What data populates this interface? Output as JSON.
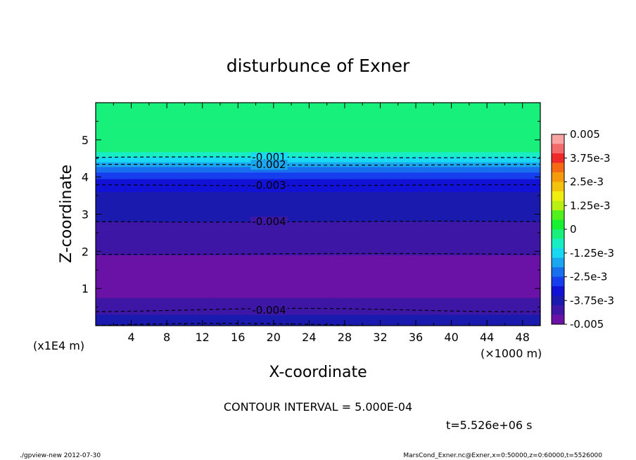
{
  "chart_data": {
    "type": "heatmap",
    "title": "disturbunce of Exner",
    "xlabel": "X-coordinate",
    "ylabel": "Z-coordinate",
    "x_unit": "(×1000 m)",
    "y_unit": "(x1E4 m)",
    "xlim": [
      0,
      50
    ],
    "ylim": [
      0,
      6
    ],
    "x_ticks": [
      "4",
      "8",
      "12",
      "16",
      "20",
      "24",
      "28",
      "32",
      "36",
      "40",
      "44",
      "48"
    ],
    "y_ticks": [
      "1",
      "2",
      "3",
      "4",
      "5"
    ],
    "colorbar": {
      "min": -0.005,
      "max": 0.005,
      "labels": [
        "0.005",
        "3.75e-3",
        "2.5e-3",
        "1.25e-3",
        "0",
        "-1.25e-3",
        "-2.5e-3",
        "-3.75e-3",
        "-0.005"
      ],
      "colors": [
        "#f9a3a3",
        "#f26a6a",
        "#ef2a2a",
        "#f56a14",
        "#f69a0d",
        "#f3c20f",
        "#f0ee11",
        "#b8f014",
        "#52f01d",
        "#18f032",
        "#19f07c",
        "#18eec4",
        "#18d8f2",
        "#1aa7f0",
        "#1870ef",
        "#173eee",
        "#1212d6",
        "#1a1aae",
        "#3e17a6",
        "#6b12a6"
      ]
    },
    "field_profile": {
      "z": [
        0,
        0.1,
        0.3,
        0.5,
        0.75,
        1.0,
        1.2,
        1.45,
        1.7,
        1.9,
        2.1,
        2.4,
        2.8,
        3.0,
        3.3,
        3.6,
        3.85,
        4.0,
        4.15,
        4.3,
        4.45,
        4.6,
        4.7,
        4.85,
        6.0
      ],
      "value": [
        -0.0035,
        -0.0038,
        -0.004,
        -0.0042,
        -0.0045,
        -0.0049,
        -0.005,
        -0.0049,
        -0.0046,
        -0.0045,
        -0.0044,
        -0.0042,
        -0.004,
        -0.0039,
        -0.0037,
        -0.0035,
        -0.0032,
        -0.0029,
        -0.0024,
        -0.0019,
        -0.0013,
        -0.0008,
        -0.0004,
        0.0,
        0.0
      ]
    },
    "contour_lines": [
      {
        "label": "-0.001",
        "z": 4.53
      },
      {
        "label": "-0.002",
        "z": 4.33
      },
      {
        "label": "-0.003",
        "z": 3.78
      },
      {
        "label": "-0.004",
        "z": 2.8
      },
      {
        "label": "",
        "z": 1.93
      },
      {
        "label": "-0.004",
        "z": 0.42
      },
      {
        "label": "",
        "z": 0.02
      }
    ],
    "contour_interval_text": "CONTOUR INTERVAL = 5.000E-04",
    "time_text": "t=5.526e+06 s"
  },
  "footer": {
    "left": "./gpview-new   2012-07-30",
    "right": "MarsCond_Exner.nc@Exner,x=0:50000,z=0:60000,t=5526000"
  }
}
